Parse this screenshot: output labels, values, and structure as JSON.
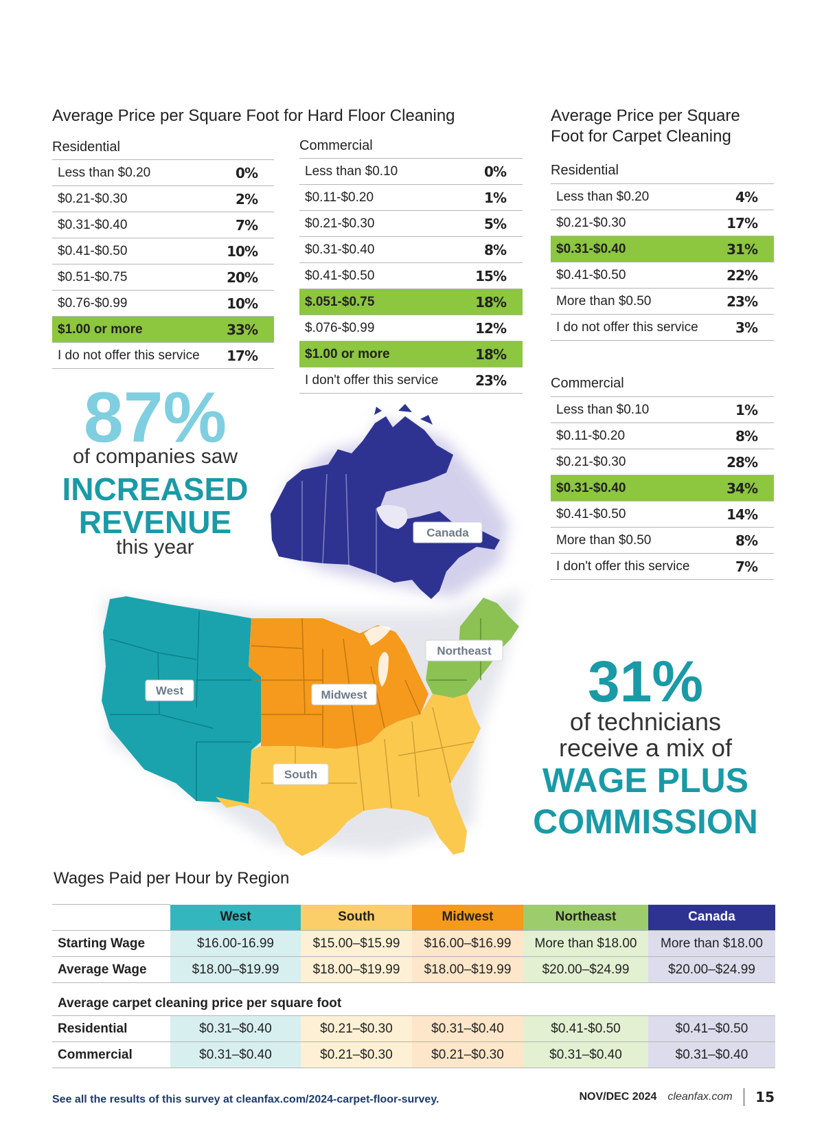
{
  "hard_floor": {
    "title": "Average Price per Square Foot for Hard Floor Cleaning",
    "residential": {
      "label": "Residential",
      "rows": [
        {
          "range": "Less than $0.20",
          "pct": "0%"
        },
        {
          "range": "$0.21-$0.30",
          "pct": "2%"
        },
        {
          "range": "$0.31-$0.40",
          "pct": "7%"
        },
        {
          "range": "$0.41-$0.50",
          "pct": "10%"
        },
        {
          "range": "$0.51-$0.75",
          "pct": "20%"
        },
        {
          "range": "$0.76-$0.99",
          "pct": "10%"
        },
        {
          "range": "$1.00 or more",
          "pct": "33%"
        },
        {
          "range": "I do not offer this service",
          "pct": "17%"
        }
      ]
    },
    "commercial": {
      "label": "Commercial",
      "rows": [
        {
          "range": "Less than $0.10",
          "pct": "0%"
        },
        {
          "range": "$0.11-$0.20",
          "pct": "1%"
        },
        {
          "range": "$0.21-$0.30",
          "pct": "5%"
        },
        {
          "range": "$0.31-$0.40",
          "pct": "8%"
        },
        {
          "range": "$0.41-$0.50",
          "pct": "15%"
        },
        {
          "range": "$.051-$0.75",
          "pct": "18%"
        },
        {
          "range": "$.076-$0.99",
          "pct": "12%"
        },
        {
          "range": "$1.00 or more",
          "pct": "18%"
        },
        {
          "range": "I don't offer this service",
          "pct": "23%"
        }
      ]
    }
  },
  "carpet": {
    "title_line1": "Average Price per Square",
    "title_line2": "Foot for Carpet Cleaning",
    "residential": {
      "label": "Residential",
      "rows": [
        {
          "range": "Less than $0.20",
          "pct": "4%"
        },
        {
          "range": "$0.21-$0.30",
          "pct": "17%"
        },
        {
          "range": "$0.31-$0.40",
          "pct": "31%"
        },
        {
          "range": "$0.41-$0.50",
          "pct": "22%"
        },
        {
          "range": "More than $0.50",
          "pct": "23%"
        },
        {
          "range": "I do not offer this service",
          "pct": "3%"
        }
      ]
    },
    "commercial": {
      "label": "Commercial",
      "rows": [
        {
          "range": "Less than $0.10",
          "pct": "1%"
        },
        {
          "range": "$0.11-$0.20",
          "pct": "8%"
        },
        {
          "range": "$0.21-$0.30",
          "pct": "28%"
        },
        {
          "range": "$0.31-$0.40",
          "pct": "34%"
        },
        {
          "range": "$0.41-$0.50",
          "pct": "14%"
        },
        {
          "range": "More than $0.50",
          "pct": "8%"
        },
        {
          "range": "I don't offer this service",
          "pct": "7%"
        }
      ]
    }
  },
  "stat_revenue": {
    "number": "87%",
    "line1": "of companies saw",
    "caps1": "INCREASED",
    "caps2": "REVENUE",
    "line2": "this year"
  },
  "stat_wage": {
    "number": "31%",
    "line1": "of technicians",
    "line2": "receive a mix of",
    "caps1a": "WAGE",
    "caps1b": "PLUS",
    "caps2": "COMMISSION"
  },
  "map": {
    "labels": {
      "canada": "Canada",
      "west": "West",
      "midwest": "Midwest",
      "northeast": "Northeast",
      "south": "South"
    },
    "colors": {
      "canada": "#2e3392",
      "west": "#1aa3ad",
      "midwest": "#f59a1c",
      "northeast": "#8cc153",
      "south": "#fcc94f"
    }
  },
  "wages": {
    "title": "Wages Paid per Hour by Region",
    "regions": [
      "West",
      "South",
      "Midwest",
      "Northeast",
      "Canada"
    ],
    "starting": {
      "label": "Starting Wage",
      "values": [
        "$16.00-16.99",
        "$15.00–$15.99",
        "$16.00–$16.99",
        "More than $18.00",
        "More than $18.00"
      ]
    },
    "average": {
      "label": "Average Wage",
      "values": [
        "$18.00–$19.99",
        "$18.00–$19.99",
        "$18.00–$19.99",
        "$20.00–$24.99",
        "$20.00–$24.99"
      ]
    },
    "section_label": "Average carpet cleaning price per square foot",
    "residential": {
      "label": "Residential",
      "values": [
        "$0.31–$0.40",
        "$0.21–$0.30",
        "$0.31–$0.40",
        "$0.41-$0.50",
        "$0.41–$0.50"
      ]
    },
    "commercial": {
      "label": "Commercial",
      "values": [
        "$0.31–$0.40",
        "$0.21–$0.30",
        "$0.21–$0.30",
        "$0.31–$0.40",
        "$0.31–$0.40"
      ]
    }
  },
  "footer": {
    "survey_text": "See all the results of this survey at cleanfax.com/2024-carpet-floor-survey.",
    "issue": "NOV/DEC 2024",
    "site": "cleanfax.com",
    "page": "15"
  }
}
